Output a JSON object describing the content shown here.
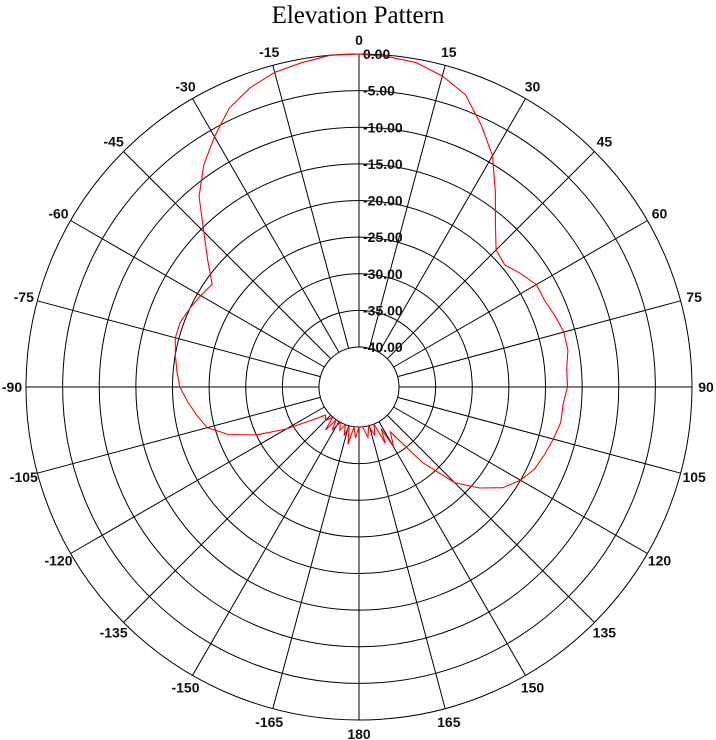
{
  "chart_data": {
    "type": "polar-line",
    "title": "Elevation Pattern",
    "angle_ticks": [
      {
        "angle": 0,
        "label": "0"
      },
      {
        "angle": 15,
        "label": "15"
      },
      {
        "angle": 30,
        "label": "30"
      },
      {
        "angle": 45,
        "label": "45"
      },
      {
        "angle": 60,
        "label": "60"
      },
      {
        "angle": 75,
        "label": "75"
      },
      {
        "angle": 90,
        "label": "90"
      },
      {
        "angle": 105,
        "label": "105"
      },
      {
        "angle": 120,
        "label": "120"
      },
      {
        "angle": 135,
        "label": "135"
      },
      {
        "angle": 150,
        "label": "150"
      },
      {
        "angle": 165,
        "label": "165"
      },
      {
        "angle": 180,
        "label": "180"
      },
      {
        "angle": -165,
        "label": "-165"
      },
      {
        "angle": -150,
        "label": "-150"
      },
      {
        "angle": -135,
        "label": "-135"
      },
      {
        "angle": -120,
        "label": "-120"
      },
      {
        "angle": -105,
        "label": "-105"
      },
      {
        "angle": -90,
        "label": "-90"
      },
      {
        "angle": -75,
        "label": "-75"
      },
      {
        "angle": -60,
        "label": "-60"
      },
      {
        "angle": -45,
        "label": "-45"
      },
      {
        "angle": -30,
        "label": "-30"
      },
      {
        "angle": -15,
        "label": "-15"
      }
    ],
    "radial_ticks": [
      {
        "value": 0,
        "label": "0.00"
      },
      {
        "value": -5,
        "label": "-5.00"
      },
      {
        "value": -10,
        "label": "-10.00"
      },
      {
        "value": -15,
        "label": "-15.00"
      },
      {
        "value": -20,
        "label": "-20.00"
      },
      {
        "value": -25,
        "label": "-25.00"
      },
      {
        "value": -30,
        "label": "-30.00"
      },
      {
        "value": -35,
        "label": "-35.00"
      },
      {
        "value": -40,
        "label": "-40.00"
      }
    ],
    "rlim": [
      -40,
      0
    ],
    "outer_ring": 0,
    "rays": true,
    "series": [
      {
        "color": "#ff0000",
        "points": [
          [
            -180,
            -40
          ],
          [
            -176,
            -38.5
          ],
          [
            -173,
            -40
          ],
          [
            -169,
            -37.5
          ],
          [
            -166,
            -40
          ],
          [
            -163,
            -38.5
          ],
          [
            -160,
            -40
          ],
          [
            -156,
            -39
          ],
          [
            -152,
            -40
          ],
          [
            -148,
            -38.5
          ],
          [
            -145,
            -40
          ],
          [
            -142,
            -38
          ],
          [
            -139,
            -40
          ],
          [
            -135,
            -39
          ],
          [
            -130,
            -39.5
          ],
          [
            -125,
            -37.5
          ],
          [
            -120,
            -34
          ],
          [
            -115,
            -30
          ],
          [
            -110,
            -26.5
          ],
          [
            -105,
            -24
          ],
          [
            -100,
            -23
          ],
          [
            -95,
            -22
          ],
          [
            -90,
            -21
          ],
          [
            -85,
            -20.5
          ],
          [
            -80,
            -20
          ],
          [
            -75,
            -19.5
          ],
          [
            -70,
            -19.5
          ],
          [
            -65,
            -20
          ],
          [
            -60,
            -20.5
          ],
          [
            -55,
            -21
          ],
          [
            -50,
            -18.5
          ],
          [
            -45,
            -15.5
          ],
          [
            -40,
            -11.5
          ],
          [
            -35,
            -8.5
          ],
          [
            -30,
            -6
          ],
          [
            -25,
            -3.5
          ],
          [
            -20,
            -2
          ],
          [
            -15,
            -1
          ],
          [
            -10,
            -0.5
          ],
          [
            -5,
            0
          ],
          [
            0,
            0
          ],
          [
            5,
            -0.2
          ],
          [
            10,
            -0.5
          ],
          [
            15,
            -1.5
          ],
          [
            20,
            -3
          ],
          [
            25,
            -6
          ],
          [
            30,
            -9
          ],
          [
            35,
            -13
          ],
          [
            40,
            -16.5
          ],
          [
            45,
            -19
          ],
          [
            50,
            -19.5
          ],
          [
            55,
            -18.5
          ],
          [
            60,
            -17.5
          ],
          [
            65,
            -17.5
          ],
          [
            70,
            -17
          ],
          [
            75,
            -16.5
          ],
          [
            80,
            -16.5
          ],
          [
            85,
            -17
          ],
          [
            90,
            -17
          ],
          [
            95,
            -17.5
          ],
          [
            100,
            -17.5
          ],
          [
            105,
            -18
          ],
          [
            110,
            -18.5
          ],
          [
            115,
            -19
          ],
          [
            120,
            -20
          ],
          [
            125,
            -21.5
          ],
          [
            130,
            -24
          ],
          [
            135,
            -27
          ],
          [
            140,
            -32
          ],
          [
            145,
            -38
          ],
          [
            150,
            -36
          ],
          [
            152,
            -39
          ],
          [
            155,
            -37
          ],
          [
            158,
            -40
          ],
          [
            162,
            -38.5
          ],
          [
            166,
            -40
          ],
          [
            170,
            -38.5
          ],
          [
            175,
            -40
          ],
          [
            180,
            -40
          ]
        ]
      }
    ]
  }
}
